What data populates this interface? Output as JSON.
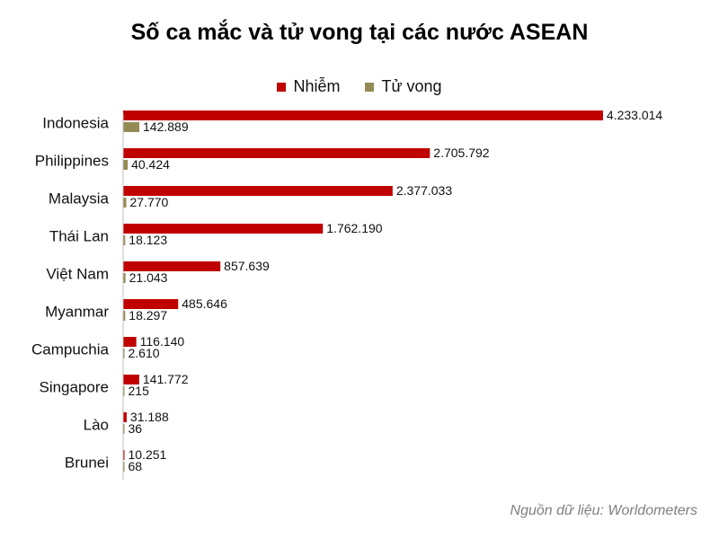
{
  "chart_data": {
    "type": "bar",
    "orientation": "horizontal",
    "title": "Số ca mắc và tử vong tại các nước ASEAN",
    "categories": [
      "Indonesia",
      "Philippines",
      "Malaysia",
      "Thái Lan",
      "Việt Nam",
      "Myanmar",
      "Campuchia",
      "Singapore",
      "Lào",
      "Brunei"
    ],
    "series": [
      {
        "name": "Nhiễm",
        "color": "#c00000",
        "values": [
          4233014,
          2705792,
          2377033,
          1762190,
          857639,
          485646,
          116140,
          141772,
          31188,
          10251
        ],
        "labels": [
          "4.233.014",
          "2.705.792",
          "2.377.033",
          "1.762.190",
          "857.639",
          "485.646",
          "116.140",
          "141.772",
          "31.188",
          "10.251"
        ]
      },
      {
        "name": "Tử vong",
        "color": "#948a54",
        "values": [
          142889,
          40424,
          27770,
          18123,
          21043,
          18297,
          2610,
          215,
          36,
          68
        ],
        "labels": [
          "142.889",
          "40.424",
          "27.770",
          "18.123",
          "21.043",
          "18.297",
          "2.610",
          "215",
          "36",
          "68"
        ]
      }
    ],
    "xlim": [
      0,
      4400000
    ],
    "legend_position": "top",
    "grid": false
  },
  "source": "Nguồn dữ liệu: Worldometers"
}
